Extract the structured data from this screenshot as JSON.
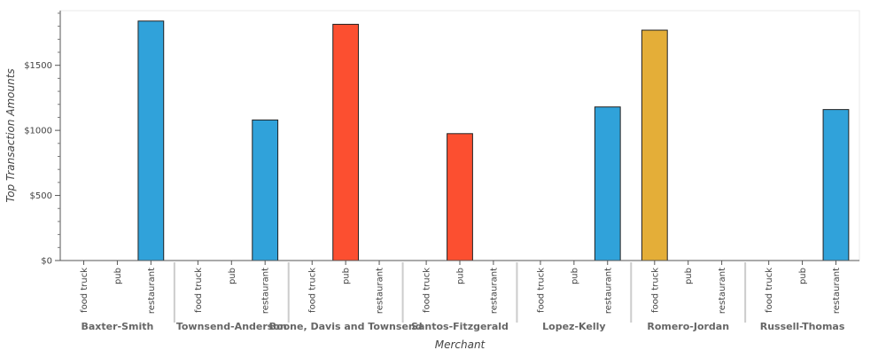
{
  "chart_data": {
    "type": "bar",
    "xlabel": "Merchant",
    "ylabel": "Top Transaction Amounts",
    "subcategories": [
      "food truck",
      "pub",
      "restaurant"
    ],
    "colors": {
      "food truck": "#e4ae38",
      "pub": "#fc4f30",
      "restaurant": "#30a2da"
    },
    "groups": [
      {
        "name": "Baxter-Smith",
        "values": [
          0,
          0,
          1840
        ]
      },
      {
        "name": "Townsend-Anderson",
        "values": [
          0,
          0,
          1080
        ]
      },
      {
        "name": "Boone, Davis and Townsend",
        "values": [
          0,
          1815,
          0
        ]
      },
      {
        "name": "Santos-Fitzgerald",
        "values": [
          0,
          975,
          0
        ]
      },
      {
        "name": "Lopez-Kelly",
        "values": [
          0,
          0,
          1180
        ]
      },
      {
        "name": "Romero-Jordan",
        "values": [
          1770,
          0,
          0
        ]
      },
      {
        "name": "Russell-Thomas",
        "values": [
          0,
          0,
          1160
        ]
      }
    ],
    "yticks": [
      0,
      500,
      1000,
      1500
    ],
    "ytick_labels": [
      "$0",
      "$500",
      "$1000",
      "$1500"
    ],
    "ylim": [
      0,
      1920
    ],
    "grid": false,
    "legend": "none"
  }
}
